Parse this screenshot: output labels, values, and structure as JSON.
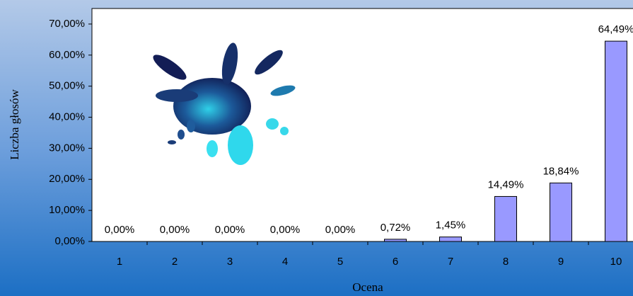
{
  "chart_data": {
    "type": "bar",
    "x_label": "Ocena",
    "y_label": "Liczba głosów",
    "categories": [
      "1",
      "2",
      "3",
      "4",
      "5",
      "6",
      "7",
      "8",
      "9",
      "10"
    ],
    "values": [
      0,
      0,
      0,
      0,
      0,
      0.72,
      1.45,
      14.49,
      18.84,
      64.49
    ],
    "value_labels": [
      "0,00%",
      "0,00%",
      "0,00%",
      "0,00%",
      "0,00%",
      "0,72%",
      "1,45%",
      "14,49%",
      "18,84%",
      "64,49%"
    ],
    "color": "#9999ff",
    "ylim": [
      0,
      75
    ],
    "yticks": [
      {
        "value": 0,
        "label": "0,00%"
      },
      {
        "value": 10,
        "label": "10,00%"
      },
      {
        "value": 20,
        "label": "20,00%"
      },
      {
        "value": 30,
        "label": "30,00%"
      },
      {
        "value": 40,
        "label": "40,00%"
      },
      {
        "value": 50,
        "label": "50,00%"
      },
      {
        "value": 60,
        "label": "60,00%"
      },
      {
        "value": 70,
        "label": "70,00%"
      }
    ],
    "grid": false
  }
}
